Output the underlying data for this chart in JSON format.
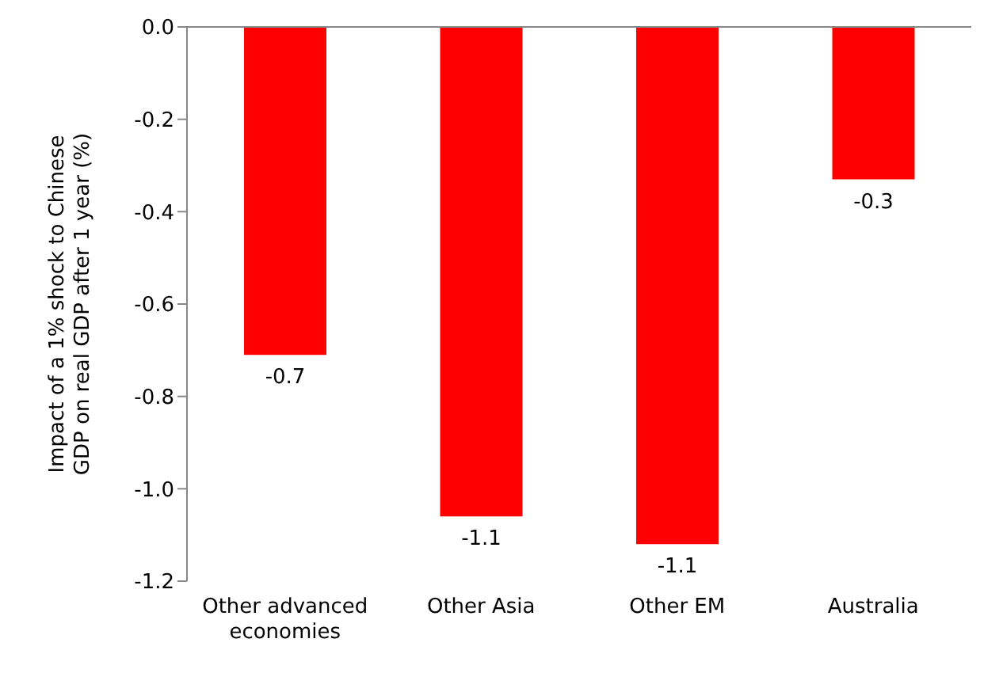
{
  "chart_data": {
    "type": "bar",
    "ylabel": "Impact of a 1% shock to Chinese GDP on real GDP after 1 year (%)",
    "categories": [
      "Other advanced economies",
      "Other Asia",
      "Other EM",
      "Australia"
    ],
    "values": [
      -0.71,
      -1.06,
      -1.12,
      -0.33
    ],
    "value_labels": [
      "-0.7",
      "-1.1",
      "-1.1",
      "-0.3"
    ],
    "color": "#ff0000",
    "ylim": [
      -1.2,
      0
    ],
    "yticks": [
      {
        "value": -1.2,
        "label": "-1.2"
      },
      {
        "value": -1,
        "label": "-1.0"
      },
      {
        "value": -0.8,
        "label": "-0.8"
      },
      {
        "value": -0.6,
        "label": "-0.6"
      },
      {
        "value": -0.4,
        "label": "-0.4"
      },
      {
        "value": -0.2,
        "label": "-0.2"
      },
      {
        "value": 0,
        "label": "0.0"
      }
    ],
    "grid": false,
    "legend": false
  }
}
